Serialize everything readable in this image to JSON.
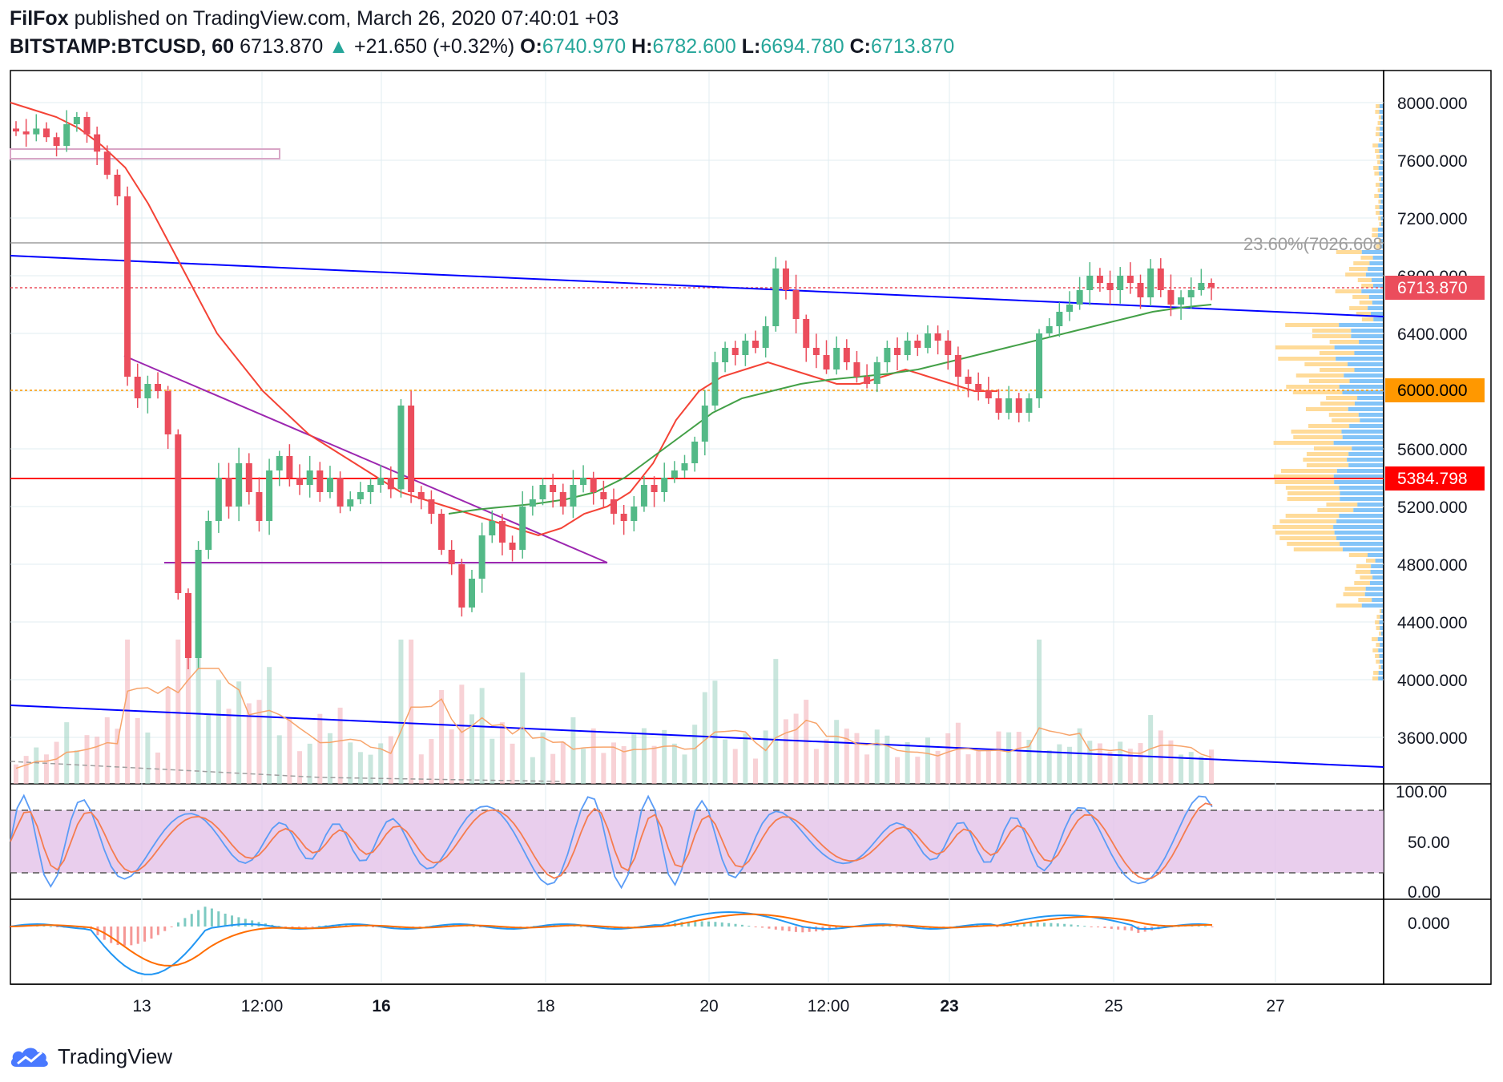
{
  "header": {
    "author": "FilFox",
    "published_text": "published on TradingView.com, March 26, 2020 07:40:01 +03",
    "symbol": "BITSTAMP:BTCUSD, 60",
    "last": "6713.870",
    "change": "+21.650 (+0.32%)",
    "open_label": "O:",
    "open": "6740.970",
    "high_label": "H:",
    "high": "6782.600",
    "low_label": "L:",
    "low": "6694.780",
    "close_label": "C:",
    "close": "6713.870"
  },
  "colors": {
    "up": "#53b987",
    "down": "#eb4d5c",
    "blue_line": "#0000ff",
    "purple_line": "#9c27b0",
    "ma_red": "#f44336",
    "ma_green": "#43a047",
    "orange": "#ff9800",
    "grid": "#e1ecf2",
    "stoch_fill": "#e1bee7",
    "stoch_k": "#5b9cf6",
    "stoch_d": "#f57c4f"
  },
  "chart_data": [
    {
      "type": "candlestick",
      "title": "BITSTAMP:BTCUSD, 60",
      "x_ticks": [
        "13",
        "12:00",
        "16",
        "18",
        "20",
        "12:00",
        "23",
        "25",
        "27"
      ],
      "y_ticks": [
        "8000.000",
        "7600.000",
        "7200.000",
        "6800.000",
        "6400.000",
        "6000.000",
        "5600.000",
        "5200.000",
        "4800.000",
        "4400.000",
        "4000.000",
        "3600.000"
      ],
      "ylim": [
        3300,
        8300
      ],
      "price_labels": [
        {
          "name": "last_price",
          "value": "6713.870",
          "color": "#eb4d5c"
        },
        {
          "name": "level_6000",
          "value": "6000.000",
          "color": "#ff9800"
        },
        {
          "name": "level_5384",
          "value": "5384.798",
          "color": "#ff0000"
        }
      ],
      "fib_label": "23.60%(7026.608",
      "close_series": [
        7800,
        7780,
        7820,
        7760,
        7700,
        7850,
        7900,
        7780,
        7660,
        7500,
        7350,
        6100,
        5950,
        6050,
        6000,
        5700,
        4600,
        4150,
        4900,
        5100,
        5400,
        5200,
        5500,
        5300,
        5100,
        5450,
        5550,
        5400,
        5350,
        5450,
        5300,
        5400,
        5200,
        5250,
        5300,
        5350,
        5400,
        5320,
        5900,
        5300,
        5250,
        5150,
        4900,
        4800,
        4500,
        4700,
        5000,
        5100,
        4950,
        4900,
        5200,
        5250,
        5350,
        5300,
        5200,
        5350,
        5400,
        5300,
        5250,
        5150,
        5100,
        5200,
        5350,
        5300,
        5400,
        5450,
        5500,
        5650,
        5900,
        6200,
        6300,
        6250,
        6350,
        6300,
        6450,
        6850,
        6700,
        6500,
        6300,
        6250,
        6150,
        6300,
        6200,
        6100,
        6050,
        6200,
        6300,
        6250,
        6350,
        6300,
        6400,
        6350,
        6250,
        6100,
        6050,
        6000,
        5950,
        5850,
        5950,
        5850,
        5950,
        6400,
        6450,
        6550,
        6600,
        6700,
        6800,
        6750,
        6700,
        6800,
        6750,
        6650,
        6850,
        6700,
        6600,
        6650,
        6700,
        6750,
        6720
      ],
      "ma_red_series": [
        8000,
        7950,
        7900,
        7820,
        7700,
        7550,
        7300,
        7000,
        6700,
        6400,
        6200,
        6000,
        5850,
        5700,
        5600,
        5500,
        5400,
        5300,
        5250,
        5200,
        5150,
        5100,
        5050,
        5000,
        5050,
        5150,
        5200,
        5300,
        5500,
        5800,
        6000,
        6100,
        6150,
        6200,
        6150,
        6100,
        6050,
        6050,
        6100,
        6150,
        6100,
        6050,
        6000,
        6000
      ],
      "ma_green_series": [
        5150,
        5180,
        5200,
        5220,
        5250,
        5300,
        5400,
        5550,
        5700,
        5850,
        5950,
        6000,
        6050,
        6080,
        6100,
        6120,
        6150,
        6200,
        6250,
        6300,
        6350,
        6400,
        6450,
        6500,
        6550,
        6580,
        6600
      ],
      "stoch_levels": [
        "100.00",
        "50.00",
        "0.00"
      ],
      "macd_levels": [
        "0.000"
      ]
    }
  ],
  "footer": {
    "brand": "TradingView"
  }
}
